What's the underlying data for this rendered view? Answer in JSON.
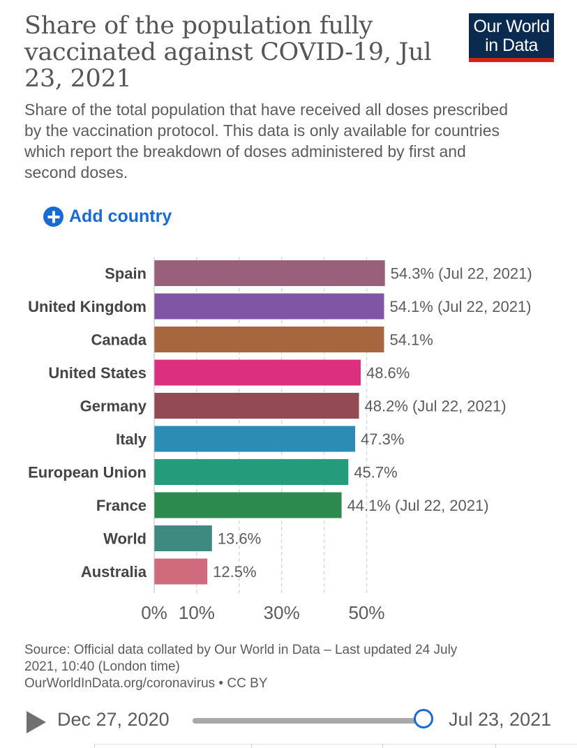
{
  "header": {
    "title": "Share of the population fully vaccinated against COVID-19, Jul 23, 2021",
    "subtitle": "Share of the total population that have received all doses prescribed by the vaccination protocol. This data is only available for countries which report the breakdown of doses administered by first and second doses.",
    "logo_line1": "Our World",
    "logo_line2": "in Data"
  },
  "controls": {
    "add_country_label": "Add country"
  },
  "chart_data": {
    "type": "bar",
    "orientation": "horizontal",
    "title": "Share of the population fully vaccinated against COVID-19, Jul 23, 2021",
    "unit": "%",
    "xlim": [
      0,
      60
    ],
    "gridlines": [
      10,
      20,
      30,
      40,
      50
    ],
    "tick_values": [
      0,
      10,
      30,
      50
    ],
    "tick_labels": [
      "0%",
      "10%",
      "30%",
      "50%"
    ],
    "categories": [
      "Spain",
      "United Kingdom",
      "Canada",
      "United States",
      "Germany",
      "Italy",
      "European Union",
      "France",
      "World",
      "Australia"
    ],
    "values": [
      54.3,
      54.1,
      54.1,
      48.6,
      48.2,
      47.3,
      45.7,
      44.1,
      13.6,
      12.5
    ],
    "value_labels": [
      "54.3% (Jul 22, 2021)",
      "54.1% (Jul 22, 2021)",
      "54.1%",
      "48.6%",
      "48.2% (Jul 22, 2021)",
      "47.3%",
      "45.7%",
      "44.1% (Jul 22, 2021)",
      "13.6%",
      "12.5%"
    ],
    "colors": [
      "#9a5f7b",
      "#8055a3",
      "#a8663e",
      "#dc2f7f",
      "#944a52",
      "#2d8cb5",
      "#249b7b",
      "#2c8a4f",
      "#3f8a80",
      "#d06b7d"
    ]
  },
  "footer": {
    "source_line1": "Source: Official data collated by Our World in Data – Last updated 24 July",
    "source_line2": "2021, 10:40 (London time)",
    "source_line3": "OurWorldInData.org/coronavirus • CC BY"
  },
  "timeline": {
    "start_date": "Dec 27, 2020",
    "end_date": "Jul 23, 2021",
    "position": 1.0
  }
}
